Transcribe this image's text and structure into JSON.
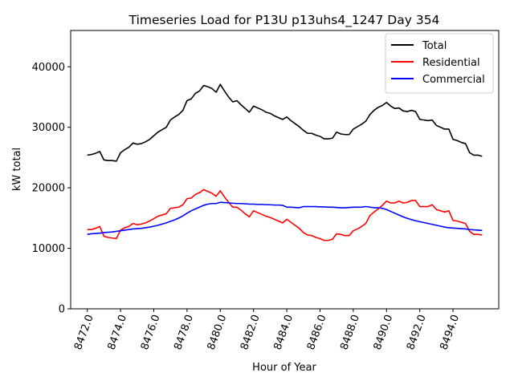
{
  "chart_data": {
    "type": "line",
    "title": "Timeseries Load for P13U p13uhs4_1247  Day 354",
    "xlabel": "Hour of Year",
    "ylabel": "kW total",
    "xlim": [
      8471.0,
      8496.75
    ],
    "ylim": [
      0,
      46000
    ],
    "xticks": [
      8472,
      8474,
      8476,
      8478,
      8480,
      8482,
      8484,
      8486,
      8488,
      8490,
      8492,
      8494
    ],
    "xtick_labels": [
      "8472.0",
      "8474.0",
      "8476.0",
      "8478.0",
      "8480.0",
      "8482.0",
      "8484.0",
      "8486.0",
      "8488.0",
      "8490.0",
      "8492.0",
      "8494.0"
    ],
    "yticks": [
      0,
      10000,
      20000,
      30000,
      40000
    ],
    "ytick_labels": [
      "0",
      "10000",
      "20000",
      "30000",
      "40000"
    ],
    "x_start": 8472.0,
    "x_step": 0.25,
    "legend_position": "top-right",
    "series": [
      {
        "name": "Total",
        "color": "#000000",
        "values": [
          25400,
          25500,
          25700,
          26000,
          24600,
          24500,
          24500,
          24400,
          25800,
          26300,
          26700,
          27400,
          27200,
          27300,
          27600,
          28000,
          28600,
          29200,
          29600,
          30000,
          31200,
          31700,
          32100,
          32800,
          34400,
          34700,
          35600,
          36000,
          36900,
          36700,
          36400,
          35800,
          37100,
          36000,
          35000,
          34200,
          34400,
          33700,
          33100,
          32500,
          33500,
          33200,
          32900,
          32500,
          32300,
          31900,
          31600,
          31300,
          31700,
          31100,
          30600,
          30100,
          29500,
          29000,
          29000,
          28700,
          28500,
          28100,
          28100,
          28200,
          29200,
          28900,
          28800,
          28800,
          29700,
          30100,
          30500,
          31000,
          32100,
          32800,
          33300,
          33600,
          34100,
          33500,
          33100,
          33200,
          32700,
          32600,
          32800,
          32600,
          31300,
          31200,
          31100,
          31200,
          30300,
          30000,
          29700,
          29700,
          28000,
          27800,
          27500,
          27300,
          25800,
          25400,
          25400,
          25200
        ]
      },
      {
        "name": "Residential",
        "color": "#ff0000",
        "values": [
          13100,
          13100,
          13300,
          13600,
          12000,
          11800,
          11700,
          11600,
          13000,
          13400,
          13600,
          14100,
          13900,
          14000,
          14200,
          14500,
          14900,
          15300,
          15500,
          15700,
          16600,
          16700,
          16800,
          17200,
          18200,
          18300,
          18900,
          19200,
          19700,
          19400,
          19100,
          18600,
          19500,
          18500,
          17600,
          16800,
          16800,
          16300,
          15700,
          15200,
          16200,
          15900,
          15600,
          15300,
          15100,
          14800,
          14500,
          14200,
          14800,
          14300,
          13800,
          13300,
          12600,
          12200,
          12100,
          11800,
          11600,
          11300,
          11300,
          11500,
          12400,
          12300,
          12100,
          12100,
          12900,
          13200,
          13600,
          14100,
          15400,
          16000,
          16500,
          17100,
          17800,
          17500,
          17500,
          17800,
          17500,
          17600,
          17900,
          17900,
          16900,
          16900,
          16900,
          17200,
          16400,
          16200,
          16000,
          16200,
          14600,
          14500,
          14300,
          14100,
          12800,
          12300,
          12300,
          12200
        ]
      },
      {
        "name": "Commercial",
        "color": "#0000ff",
        "values": [
          12300,
          12400,
          12450,
          12500,
          12600,
          12650,
          12700,
          12800,
          12900,
          13000,
          13100,
          13200,
          13250,
          13300,
          13400,
          13500,
          13650,
          13800,
          14000,
          14200,
          14450,
          14700,
          15000,
          15350,
          15800,
          16200,
          16500,
          16800,
          17100,
          17300,
          17400,
          17400,
          17600,
          17550,
          17500,
          17450,
          17400,
          17400,
          17350,
          17300,
          17300,
          17250,
          17250,
          17200,
          17200,
          17150,
          17150,
          17100,
          16800,
          16800,
          16750,
          16700,
          16900,
          16900,
          16900,
          16900,
          16850,
          16850,
          16800,
          16800,
          16750,
          16700,
          16700,
          16750,
          16800,
          16800,
          16800,
          16900,
          16800,
          16700,
          16700,
          16600,
          16400,
          16100,
          15800,
          15500,
          15200,
          14950,
          14750,
          14550,
          14400,
          14250,
          14100,
          13950,
          13800,
          13650,
          13500,
          13400,
          13350,
          13300,
          13250,
          13200,
          13100,
          13050,
          13000,
          12950
        ]
      }
    ]
  }
}
